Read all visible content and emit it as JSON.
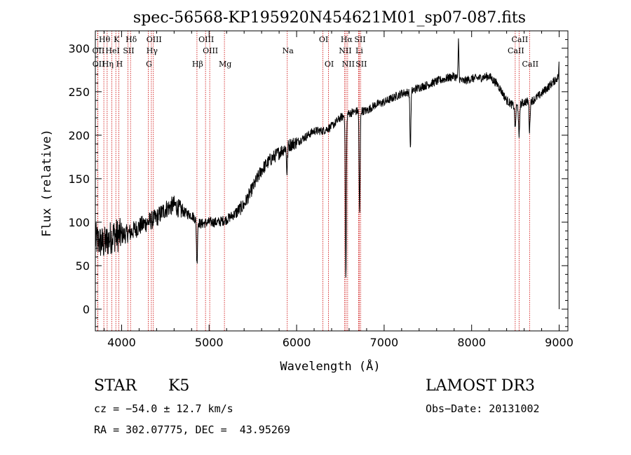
{
  "chart_data": {
    "type": "line",
    "title": "spec-56568-KP195920N454621M01_sp07-087.fits",
    "xlabel": "Wavelength (Å)",
    "ylabel": "Flux (relative)",
    "xlim": [
      3700,
      9100
    ],
    "ylim": [
      -25,
      320
    ],
    "xticks": [
      4000,
      5000,
      6000,
      7000,
      8000,
      9000
    ],
    "yticks": [
      0,
      50,
      100,
      150,
      200,
      250,
      300
    ],
    "spectrum_anchors": [
      {
        "x": 3700,
        "y": 80
      },
      {
        "x": 3800,
        "y": 75
      },
      {
        "x": 3900,
        "y": 85
      },
      {
        "x": 4000,
        "y": 85
      },
      {
        "x": 4100,
        "y": 88
      },
      {
        "x": 4200,
        "y": 95
      },
      {
        "x": 4300,
        "y": 100
      },
      {
        "x": 4400,
        "y": 105
      },
      {
        "x": 4500,
        "y": 115
      },
      {
        "x": 4600,
        "y": 120
      },
      {
        "x": 4700,
        "y": 112
      },
      {
        "x": 4800,
        "y": 108
      },
      {
        "x": 4900,
        "y": 98
      },
      {
        "x": 5000,
        "y": 100
      },
      {
        "x": 5100,
        "y": 100
      },
      {
        "x": 5200,
        "y": 103
      },
      {
        "x": 5300,
        "y": 110
      },
      {
        "x": 5400,
        "y": 120
      },
      {
        "x": 5500,
        "y": 140
      },
      {
        "x": 5600,
        "y": 160
      },
      {
        "x": 5700,
        "y": 172
      },
      {
        "x": 5800,
        "y": 180
      },
      {
        "x": 5900,
        "y": 188
      },
      {
        "x": 6000,
        "y": 192
      },
      {
        "x": 6100,
        "y": 198
      },
      {
        "x": 6200,
        "y": 205
      },
      {
        "x": 6300,
        "y": 205
      },
      {
        "x": 6400,
        "y": 210
      },
      {
        "x": 6500,
        "y": 220
      },
      {
        "x": 6600,
        "y": 225
      },
      {
        "x": 6700,
        "y": 228
      },
      {
        "x": 6800,
        "y": 228
      },
      {
        "x": 6900,
        "y": 235
      },
      {
        "x": 7000,
        "y": 238
      },
      {
        "x": 7100,
        "y": 243
      },
      {
        "x": 7200,
        "y": 248
      },
      {
        "x": 7300,
        "y": 250
      },
      {
        "x": 7400,
        "y": 255
      },
      {
        "x": 7500,
        "y": 258
      },
      {
        "x": 7600,
        "y": 262
      },
      {
        "x": 7700,
        "y": 265
      },
      {
        "x": 7800,
        "y": 268
      },
      {
        "x": 7900,
        "y": 262
      },
      {
        "x": 8000,
        "y": 265
      },
      {
        "x": 8100,
        "y": 266
      },
      {
        "x": 8200,
        "y": 268
      },
      {
        "x": 8300,
        "y": 258
      },
      {
        "x": 8400,
        "y": 240
      },
      {
        "x": 8500,
        "y": 232
      },
      {
        "x": 8600,
        "y": 238
      },
      {
        "x": 8700,
        "y": 240
      },
      {
        "x": 8800,
        "y": 248
      },
      {
        "x": 8900,
        "y": 258
      },
      {
        "x": 9000,
        "y": 268
      }
    ],
    "absorption_features": [
      {
        "x": 4861,
        "depth": 50
      },
      {
        "x": 5890,
        "depth": 30
      },
      {
        "x": 6563,
        "depth": 190
      },
      {
        "x": 6720,
        "depth": 120
      },
      {
        "x": 7300,
        "depth": 65
      },
      {
        "x": 8498,
        "depth": 25
      },
      {
        "x": 8542,
        "depth": 40
      },
      {
        "x": 8662,
        "depth": 35
      }
    ],
    "spikes": [
      {
        "x": 7850,
        "height": 45
      },
      {
        "x": 9000,
        "height": 15
      }
    ],
    "spectral_lines": [
      {
        "label": "Hθ",
        "x": 3797,
        "row": 0
      },
      {
        "label": "K",
        "x": 3934,
        "row": 0
      },
      {
        "label": "Hδ",
        "x": 4102,
        "row": 0
      },
      {
        "label": "OIII",
        "x": 4363,
        "row": 0
      },
      {
        "label": "OIII",
        "x": 4959,
        "row": 0
      },
      {
        "label": "OI",
        "x": 6300,
        "row": 0
      },
      {
        "label": "Hα",
        "x": 6563,
        "row": 0
      },
      {
        "label": "SII",
        "x": 6716,
        "row": 0
      },
      {
        "label": "CaII",
        "x": 8542,
        "row": 0
      },
      {
        "label": "OII",
        "x": 3727,
        "row": 1
      },
      {
        "label": "HeI",
        "x": 3889,
        "row": 1
      },
      {
        "label": "SII",
        "x": 4072,
        "row": 1
      },
      {
        "label": "Hγ",
        "x": 4340,
        "row": 1
      },
      {
        "label": "OIII",
        "x": 5007,
        "row": 1
      },
      {
        "label": "Na",
        "x": 5893,
        "row": 1
      },
      {
        "label": "NII",
        "x": 6548,
        "row": 1
      },
      {
        "label": "Li",
        "x": 6708,
        "row": 1
      },
      {
        "label": "CaII",
        "x": 8498,
        "row": 1
      },
      {
        "label": "OII",
        "x": 3729,
        "row": 2
      },
      {
        "label": "Hη",
        "x": 3835,
        "row": 2
      },
      {
        "label": "H",
        "x": 3968,
        "row": 2
      },
      {
        "label": "G",
        "x": 4305,
        "row": 2
      },
      {
        "label": "Hβ",
        "x": 4861,
        "row": 2
      },
      {
        "label": "Mg",
        "x": 5175,
        "row": 2
      },
      {
        "label": "OI",
        "x": 6364,
        "row": 2
      },
      {
        "label": "NII",
        "x": 6583,
        "row": 2
      },
      {
        "label": "SII",
        "x": 6731,
        "row": 2
      },
      {
        "label": "CaII",
        "x": 8662,
        "row": 2
      }
    ],
    "line_color": "#000000",
    "marker_color": "#cc0000"
  },
  "info": {
    "class": "STAR",
    "subclass": "K5",
    "survey": "LAMOST DR3",
    "cz": "cz = −54.0 ± 12.7 km/s",
    "obs_date": "Obs−Date: 20131002",
    "coords": "RA = 302.07775, DEC =  43.95269"
  }
}
